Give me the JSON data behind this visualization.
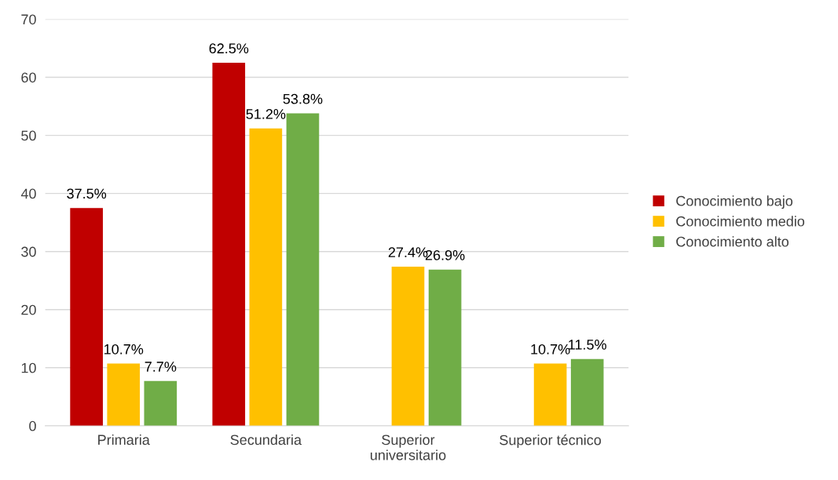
{
  "chart_data": {
    "type": "bar",
    "categories": [
      "Primaria",
      "Secundaria",
      "Superior\nuniversitario",
      "Superior técnico"
    ],
    "series": [
      {
        "name": "Conocimiento bajo",
        "color": "#c00000",
        "values": [
          37.5,
          62.5,
          null,
          null
        ],
        "value_labels": [
          "37.5%",
          "62.5%",
          null,
          null
        ]
      },
      {
        "name": "Conocimiento medio",
        "color": "#ffc000",
        "values": [
          10.7,
          51.2,
          27.4,
          10.7
        ],
        "value_labels": [
          "10.7%",
          "51.2%",
          "27.4%",
          "10.7%"
        ]
      },
      {
        "name": "Conocimiento alto",
        "color": "#70ad47",
        "values": [
          7.7,
          53.8,
          26.9,
          11.5
        ],
        "value_labels": [
          "7.7%",
          "53.8%",
          "26.9%",
          "11.5%"
        ]
      }
    ],
    "ylim": [
      0,
      70
    ],
    "yticks": [
      0,
      10,
      20,
      30,
      40,
      50,
      60,
      70
    ],
    "grid": "y",
    "legend": "right"
  }
}
